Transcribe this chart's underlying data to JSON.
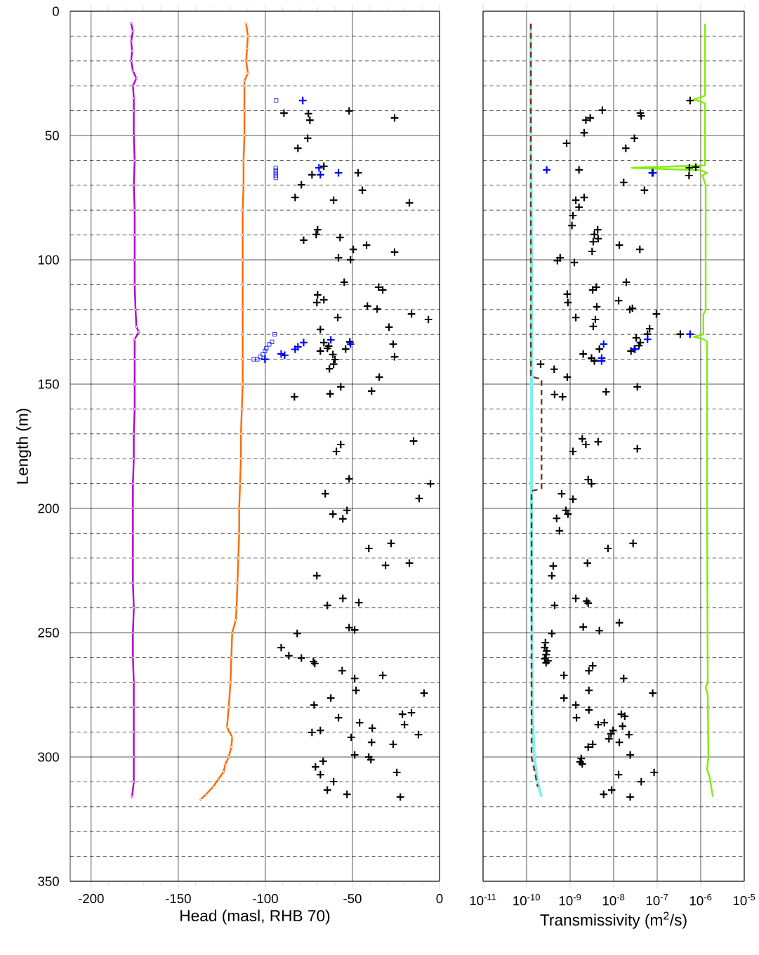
{
  "chart_data": [
    {
      "type": "scatter",
      "xlabel": "Head (masl, RHB 70)",
      "ylabel": "Length (m)",
      "xlim": [
        -212,
        0
      ],
      "ylim": [
        350,
        0
      ],
      "xticks": [
        -200,
        -150,
        -100,
        -50,
        0
      ],
      "yticks": [
        0,
        50,
        100,
        150,
        200,
        250,
        300,
        350
      ],
      "grid": true,
      "series": [
        {
          "type": "line",
          "color": "#b000d0",
          "marker": "diamond",
          "line_style": "solid",
          "x": [
            -177,
            -176,
            -177,
            -176.5,
            -177,
            -176,
            -174,
            -176,
            -175.5,
            -175.5,
            -175.5,
            -175,
            -175.5,
            -175,
            -175,
            -175,
            -175,
            -174.5,
            -174,
            -172.6,
            -175,
            -175,
            -175,
            -175,
            -175.5,
            -175.5,
            -176,
            -176,
            -176,
            -176,
            -176,
            -175.5,
            -176,
            -176,
            -175.5,
            -175.5,
            -175.5,
            -175.5,
            -175.5,
            -176.5
          ],
          "values": [
            5,
            8,
            12,
            16,
            20,
            24,
            27,
            30,
            35,
            40,
            50,
            60,
            70,
            80,
            90,
            100,
            110,
            120,
            127,
            129,
            132,
            140,
            150,
            160,
            170,
            180,
            190,
            200,
            210,
            220,
            230,
            240,
            250,
            260,
            270,
            280,
            290,
            300,
            310,
            316
          ]
        },
        {
          "type": "line",
          "color": "#ff6a00",
          "marker": "diamond",
          "line_style": "solid",
          "x": [
            -111,
            -110,
            -110.5,
            -111,
            -110,
            -112,
            -112,
            -112,
            -112,
            -112.5,
            -112.5,
            -113,
            -113,
            -113,
            -113,
            -113,
            -113,
            -113,
            -113,
            -113.5,
            -114,
            -114,
            -114.5,
            -115,
            -115,
            -115.5,
            -116,
            -116.5,
            -117,
            -119,
            -119.5,
            -120,
            -121,
            -122,
            -119,
            -119.5,
            -121,
            -123,
            -124,
            -127,
            -130,
            -134,
            -137
          ],
          "values": [
            5,
            10,
            15,
            20,
            25,
            28,
            30,
            40,
            50,
            60,
            70,
            80,
            90,
            100,
            110,
            120,
            130,
            140,
            150,
            160,
            170,
            180,
            190,
            200,
            210,
            220,
            230,
            240,
            245,
            250,
            260,
            270,
            280,
            288,
            292,
            296,
            300,
            303,
            306,
            309,
            312,
            315,
            317
          ]
        },
        {
          "color": "#0000ff",
          "marker": "square",
          "x": [
            -93.8,
            -94,
            -94,
            -94,
            -94,
            -94,
            -94.6,
            -96.2,
            -97.8,
            -99.4,
            -100.2,
            -101.4,
            -103,
            -104.6,
            -106.6
          ],
          "values": [
            35.9,
            63,
            64,
            65,
            66,
            67,
            130,
            133,
            134,
            135.6,
            136.7,
            138,
            139,
            140,
            140
          ]
        },
        {
          "color": "#000000",
          "marker": "cross",
          "x": [
            -89.3,
            -75.3,
            -74.4,
            -51.9,
            -25.8,
            -75.7,
            -81.3,
            -66.4,
            -73.2,
            -46.7,
            -44.3,
            -79.3,
            -82.9,
            -60.8,
            -17.3,
            -70,
            -70.8,
            -78,
            -57.1,
            -41.9,
            -49.5,
            -58,
            -51.1,
            -25.8,
            -54.7,
            -35,
            -32.6,
            -70,
            -70.4,
            -66.4,
            -41.4,
            -35.8,
            -58.4,
            -16.1,
            -6.4,
            -29,
            -68.4,
            -26.6,
            -66.4,
            -63.6,
            -68.4,
            -64.4,
            -61.2,
            -60,
            -60.8,
            -63.2,
            -53.9,
            -51.5,
            -25.8,
            -34.6,
            -56.7,
            -62.8,
            -39,
            -83.3,
            -14.9,
            -56.7,
            -59.2,
            -51.9,
            -5.2,
            -11.7,
            -65.6,
            -53.1,
            -61.2,
            -55.5,
            -40.6,
            -27.8,
            -31,
            -17.3,
            -70.4,
            -55.5,
            -46.3,
            -64.4,
            -51.9,
            -48.7,
            -81.7,
            -90.9,
            -86.5,
            -79.3,
            -72.4,
            -71.6,
            -55.9,
            -48.7,
            -32.6,
            -62.4,
            -47.9,
            -8.9,
            -72,
            -58,
            -45.9,
            -38.6,
            -21.3,
            -16.1,
            -20.1,
            -73.2,
            -68.4,
            -50.7,
            -39,
            -26.6,
            -12.1,
            -48.7,
            -40.6,
            -39.4,
            -66.8,
            -71.2,
            -68.4,
            -60.8,
            -64.4,
            -24.5,
            -53.1,
            -22.5
          ],
          "values": [
            41,
            41.2,
            43.8,
            40.1,
            42.9,
            51.1,
            55.1,
            62.4,
            65.8,
            65,
            72,
            69.8,
            74.9,
            76,
            77.1,
            87.9,
            89.8,
            92.1,
            91,
            94.1,
            95.8,
            99.2,
            100,
            96.9,
            109,
            111,
            112.1,
            114.1,
            117.2,
            116.1,
            118.6,
            119.8,
            123.2,
            121.8,
            124,
            127.1,
            128,
            133.9,
            133.3,
            134.7,
            136.7,
            135.6,
            138.1,
            140.1,
            142,
            143.8,
            135.9,
            133,
            139,
            147.2,
            151.1,
            153.9,
            152.8,
            155.1,
            172.9,
            174.3,
            177.1,
            188.1,
            190.1,
            196,
            194.1,
            200.8,
            202.3,
            204.2,
            216.1,
            214.1,
            222.9,
            222,
            227.1,
            236.2,
            237.9,
            239,
            248,
            248.9,
            250.3,
            256,
            259.3,
            260.2,
            261.6,
            262.4,
            265.3,
            268.4,
            267.2,
            276.3,
            273.2,
            274.3,
            279.1,
            284.2,
            286.2,
            288.4,
            282.8,
            282.2,
            287,
            290.1,
            289.3,
            292.1,
            294.1,
            294.9,
            291,
            299.2,
            300,
            301.1,
            301.7,
            304,
            307.1,
            309.9,
            313.3,
            306.2,
            315,
            316.1
          ]
        },
        {
          "color": "#0000ff",
          "marker": "cross",
          "x": [
            -78.5,
            -69.2,
            -68.4,
            -58,
            -78,
            -81.3,
            -82.9,
            -88.9,
            -90.9,
            -100.2,
            -62.4,
            -51.1
          ],
          "values": [
            35.9,
            63,
            65.8,
            65,
            133.3,
            135,
            136,
            138.4,
            137.9,
            140,
            132.2,
            133.9
          ]
        }
      ]
    },
    {
      "type": "scatter",
      "xlabel": "Transmissivity (m$^{2}$/s)",
      "xlim": [
        1e-11,
        1e-05
      ],
      "ylim": [
        350,
        0
      ],
      "log": "x",
      "tick_labels": "x",
      "grid": true,
      "xticks": [
        {
          "value": 1e-11,
          "label": "10$^{-11}$"
        },
        {
          "value": 1e-10,
          "label": "10$^{-10}$"
        },
        {
          "value": 1e-09,
          "label": "10$^{-9}$"
        },
        {
          "value": 1e-08,
          "label": "10$^{-8}$"
        },
        {
          "value": 1e-07,
          "label": "10$^{-7}$"
        },
        {
          "value": 1e-06,
          "label": "10$^{-6}$"
        },
        {
          "value": 1e-05,
          "label": "10$^{-5}$"
        }
      ],
      "yticks": [
        0,
        50,
        100,
        150,
        200,
        250,
        300,
        350
      ],
      "series": [
        {
          "type": "line",
          "color": "#80f0f0",
          "marker": "none",
          "line_style": "solid",
          "x": [
            1.25e-10,
            1.25e-10,
            1.3e-10,
            1.3e-10,
            1.35e-10,
            1.5e-10,
            1.8e-10,
            2.2e-10
          ],
          "values": [
            5,
            50,
            100,
            200,
            280,
            300,
            310,
            316
          ]
        },
        {
          "type": "line",
          "color": "#6b3a1a",
          "marker": "none",
          "line_style": "dashed",
          "x": [
            1.25e-10,
            1.25e-10,
            2.2e-10,
            2.2e-10,
            1.3e-10,
            1.3e-10,
            1.5e-10,
            1.8e-10
          ],
          "values": [
            5,
            147,
            148,
            192,
            193,
            300,
            305,
            312
          ]
        },
        {
          "type": "line",
          "color": "#80ee00",
          "marker": "none",
          "line_style": "solid",
          "x": [
            1.25e-06,
            1.25e-06,
            7e-07,
            1.25e-06,
            1.25e-06,
            2.6e-08,
            1e-06,
            1.4e-06,
            1.1e-06,
            1.3e-06,
            1.3e-06,
            1.15e-06,
            1.15e-06,
            7e-07,
            1.2e-06,
            1.4e-06,
            1.4e-06,
            1.45e-06,
            1.3e-06,
            1.45e-06,
            1.5e-06,
            1.4e-06,
            1.6e-06,
            1.9e-06
          ],
          "values": [
            5,
            34,
            35.5,
            37,
            62,
            63,
            64,
            65,
            66,
            70,
            120,
            122,
            130,
            131,
            132,
            133,
            200,
            270,
            272,
            275,
            300,
            305,
            308,
            316
          ]
        },
        {
          "color": "#000000",
          "marker": "cross",
          "x": [
            5.7e-07,
            5.5e-09,
            2.9e-09,
            2.3e-09,
            4.1e-08,
            4.3e-08,
            2.1e-09,
            3e-08,
            1.9e-08,
            8.3e-10,
            1.6e-09,
            5.5e-07,
            7.7e-07,
            5.4e-07,
            7.7e-08,
            5.1e-08,
            1.7e-08,
            1.35e-09,
            2.1e-09,
            1.6e-09,
            1.16e-09,
            1.1e-09,
            4.3e-09,
            3.6e-09,
            4.4e-09,
            3.4e-09,
            3.2e-09,
            1.35e-08,
            4e-08,
            5.9e-10,
            5.1e-10,
            1.25e-09,
            1.95e-08,
            4e-09,
            3.3e-09,
            8.6e-10,
            8.9e-10,
            1.3e-08,
            2.35e-08,
            2.7e-08,
            4.1e-09,
            9.6e-08,
            1.35e-09,
            3.8e-09,
            3.4e-09,
            6.7e-08,
            6e-08,
            3.3e-08,
            4.1e-08,
            3.8e-08,
            3e-08,
            2.5e-08,
            3.4e-07,
            5.9e-09,
            4.7e-09,
            2e-09,
            3.1e-09,
            3.6e-09,
            2.1e-10,
            4.3e-10,
            8.6e-10,
            3.5e-08,
            6.7e-09,
            4.4e-10,
            6.7e-10,
            1.9e-09,
            2.3e-09,
            4.4e-09,
            3.5e-08,
            1.16e-09,
            2.6e-09,
            3.1e-09,
            6.4e-10,
            1.16e-09,
            8e-10,
            8.9e-10,
            4.9e-10,
            5.7e-10,
            7.4e-09,
            2.8e-08,
            4.1e-10,
            2.5e-09,
            3.8e-10,
            4.4e-10,
            1.35e-09,
            2.4e-09,
            2.6e-09,
            1.35e-08,
            4.7e-09,
            2e-09,
            3.8e-10,
            2.7e-10,
            2.6e-10,
            2.9e-10,
            2.8e-10,
            2.6e-10,
            3.1e-10,
            2.8e-10,
            3.3e-09,
            2.7e-09,
            7.2e-10,
            1.7e-08,
            7.2e-10,
            2.7e-09,
            7.9e-08,
            1.35e-09,
            1.4e-09,
            2.7e-09,
            4.4e-09,
            6.1e-09,
            1.5e-08,
            1.8e-08,
            1.6e-08,
            9.7e-09,
            8.7e-09,
            2.25e-08,
            7.8e-09,
            1.35e-08,
            3.3e-09,
            2.6e-09,
            2.4e-08,
            1.8e-09,
            1.7e-09,
            1.9e-09,
            8.5e-08,
            1.3e-08,
            4.3e-08,
            9e-09,
            5.9e-09,
            2.4e-08
          ],
          "values": [
            35.9,
            39.8,
            42.9,
            43.8,
            41,
            42.1,
            48.9,
            51.1,
            55.1,
            53.1,
            63.8,
            63,
            62.7,
            66.1,
            65,
            72,
            68.9,
            76,
            74.9,
            78.8,
            82.2,
            86.2,
            87.9,
            89.8,
            91.5,
            92.7,
            96.6,
            94.1,
            95.8,
            99.2,
            100.3,
            101.1,
            109,
            111,
            112.1,
            113.8,
            117.2,
            116.4,
            120,
            119.5,
            118.9,
            121.8,
            123.2,
            124,
            126.8,
            127.7,
            129.9,
            131.4,
            133.3,
            134.5,
            135.9,
            136.7,
            129.9,
            null,
            135.9,
            137.9,
            139.5,
            140.7,
            142,
            144,
            147.2,
            151.1,
            153.1,
            154.2,
            155.1,
            172,
            174.3,
            173.2,
            176,
            177.1,
            188.4,
            190.1,
            194.1,
            196.3,
            200.8,
            202.3,
            204,
            209,
            216.1,
            214.1,
            223.2,
            222,
            227.1,
            239,
            236.2,
            237.3,
            238.1,
            246,
            249.2,
            247.7,
            250.3,
            254,
            256,
            257.3,
            258.8,
            260.5,
            261.3,
            262.1,
            263.3,
            265.3,
            267.2,
            268.4,
            276.3,
            273.2,
            274.3,
            279.1,
            284.2,
            281.1,
            287,
            286.2,
            282.8,
            283.6,
            287.6,
            289.3,
            290.7,
            291,
            292.7,
            294.1,
            294.9,
            296,
            299.2,
            300.6,
            302,
            302.8,
            306.2,
            307.1,
            309.9,
            313.3,
            315,
            316.1
          ]
        },
        {
          "color": "#0000ff",
          "marker": "cross",
          "x": [
            2.9e-10,
            5.7e-07,
            8e-08,
            5.9e-09,
            5.3e-09,
            5.3e-09,
            6e-08,
            3.1e-08
          ],
          "values": [
            63.8,
            129.9,
            65,
            133.9,
            139.5,
            140.7,
            132,
            135.9
          ]
        }
      ]
    }
  ]
}
